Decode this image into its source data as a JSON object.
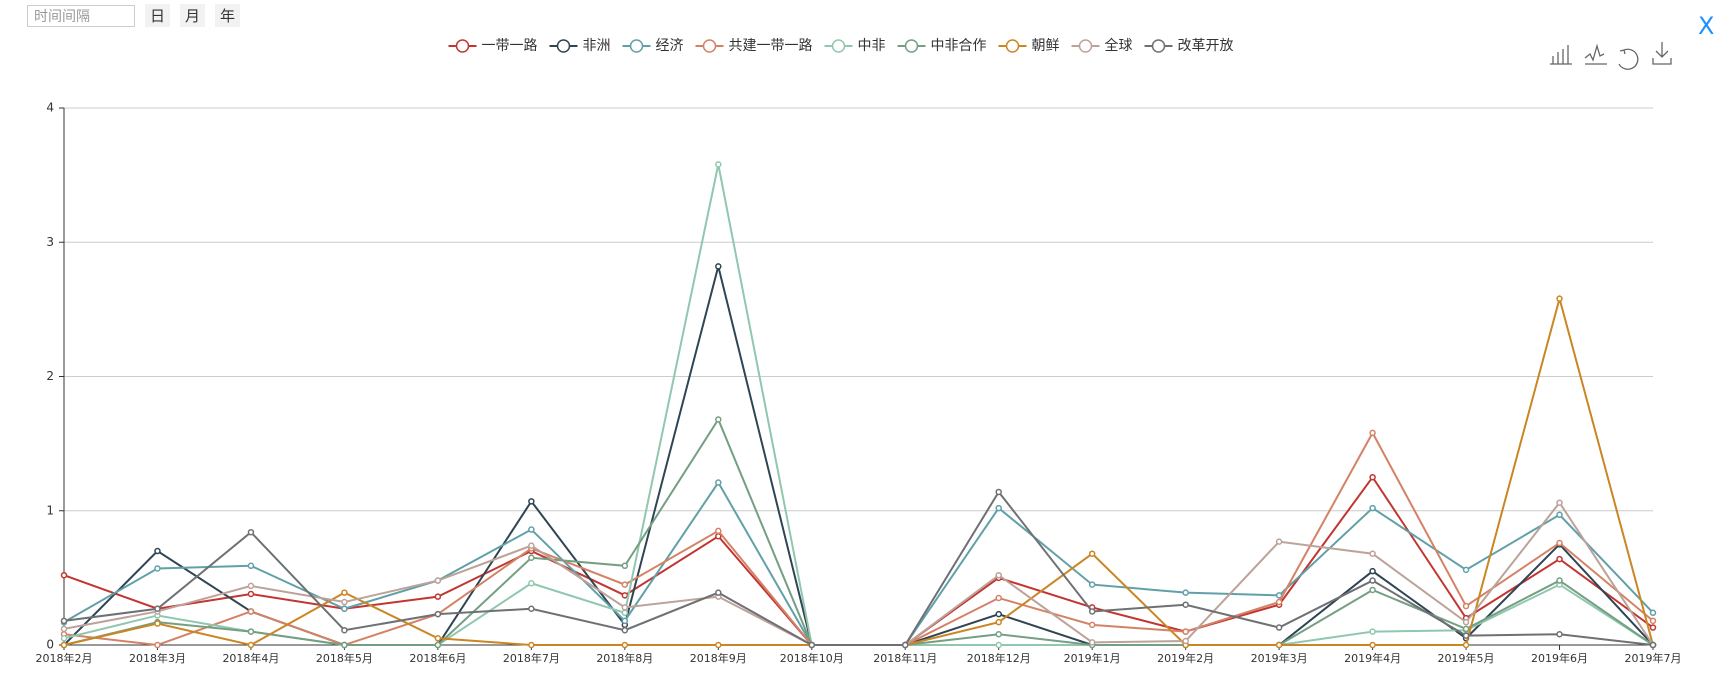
{
  "controls": {
    "placeholder": "时间间隔",
    "buttons": [
      "日",
      "月",
      "年"
    ],
    "close": "X"
  },
  "chart_data": {
    "type": "line",
    "categories": [
      "2018年2月",
      "2018年3月",
      "2018年4月",
      "2018年5月",
      "2018年6月",
      "2018年7月",
      "2018年8月",
      "2018年9月",
      "2018年10月",
      "2018年11月",
      "2018年12月",
      "2019年1月",
      "2019年2月",
      "2019年3月",
      "2019年4月",
      "2019年5月",
      "2019年6月",
      "2019年7月"
    ],
    "series": [
      {
        "name": "一带一路",
        "color": "#c23531",
        "values": [
          0.52,
          0.27,
          0.38,
          0.27,
          0.36,
          0.7,
          0.37,
          0.81,
          0,
          0,
          0.5,
          0.28,
          0.1,
          0.3,
          1.25,
          0.2,
          0.64,
          0.13
        ]
      },
      {
        "name": "非洲",
        "color": "#2f4554",
        "values": [
          0,
          0.7,
          0.25,
          0,
          0,
          1.07,
          0.15,
          2.82,
          0,
          0,
          0.23,
          0,
          0,
          0,
          0.55,
          0.05,
          0.75,
          0
        ]
      },
      {
        "name": "经济",
        "color": "#61a0a8",
        "values": [
          0.17,
          0.57,
          0.59,
          0.27,
          0.48,
          0.86,
          0.18,
          1.21,
          0,
          0,
          1.02,
          0.45,
          0.39,
          0.37,
          1.02,
          0.56,
          0.97,
          0.24
        ]
      },
      {
        "name": "共建一带一路",
        "color": "#d48265",
        "values": [
          0.08,
          0,
          0.25,
          0,
          0.23,
          0.72,
          0.45,
          0.85,
          0,
          0,
          0.35,
          0.15,
          0.1,
          0.32,
          1.58,
          0.29,
          0.76,
          0.18
        ]
      },
      {
        "name": "中非",
        "color": "#91c7ae",
        "values": [
          0.05,
          0.22,
          0.1,
          0,
          0,
          0.46,
          0.24,
          3.58,
          0,
          0,
          0,
          0,
          0,
          0,
          0.1,
          0.11,
          0.45,
          0
        ]
      },
      {
        "name": "中非合作",
        "color": "#749f83",
        "values": [
          0,
          0.17,
          0.1,
          0,
          0,
          0.65,
          0.59,
          1.68,
          0,
          0,
          0.08,
          0,
          0,
          0,
          0.41,
          0.12,
          0.48,
          0
        ]
      },
      {
        "name": "朝鲜",
        "color": "#ca8622",
        "values": [
          0,
          0.16,
          0,
          0.39,
          0.05,
          0,
          0,
          0,
          0,
          0,
          0.17,
          0.68,
          0,
          0,
          0,
          0,
          2.58,
          0
        ]
      },
      {
        "name": "全球",
        "color": "#bda29a",
        "values": [
          0.12,
          0.25,
          0.44,
          0.32,
          0.48,
          0.74,
          0.28,
          0.36,
          0,
          0,
          0.52,
          0.02,
          0.03,
          0.77,
          0.68,
          0.17,
          1.06,
          0
        ]
      },
      {
        "name": "改革开放",
        "color": "#6e7074",
        "values": [
          0.18,
          0.27,
          0.84,
          0.11,
          0.23,
          0.27,
          0.11,
          0.39,
          0,
          0,
          1.14,
          0.25,
          0.3,
          0.13,
          0.48,
          0.07,
          0.08,
          0
        ]
      }
    ],
    "ylim": [
      0,
      4
    ],
    "yticks": [
      0,
      1,
      2,
      3,
      4
    ],
    "grid": true
  }
}
